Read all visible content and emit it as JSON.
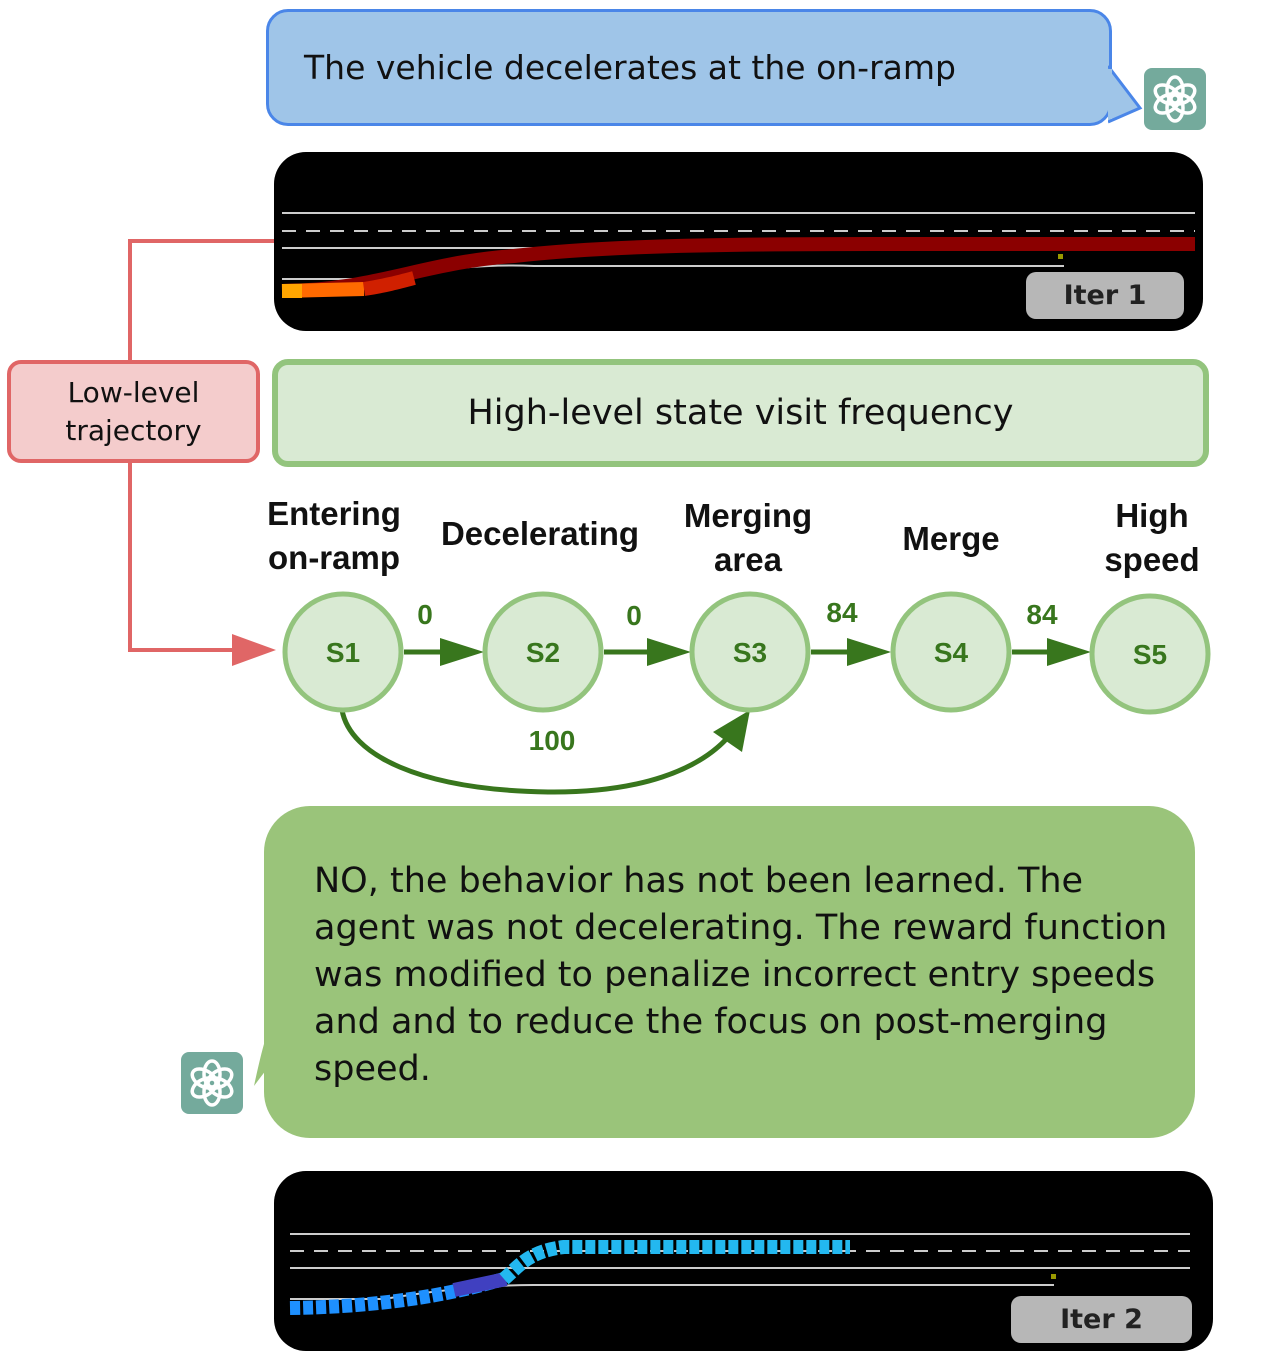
{
  "top_bubble": {
    "text": "The vehicle decelerates at the on-ramp"
  },
  "iter1": {
    "label": "Iter 1"
  },
  "iter2": {
    "label": "Iter 2"
  },
  "low_level_box": {
    "line1": "Low-level",
    "line2": "trajectory"
  },
  "high_level_box": {
    "title": "High-level state visit frequency"
  },
  "states": [
    {
      "id": "S1",
      "label_line1": "Entering",
      "label_line2": "on-ramp"
    },
    {
      "id": "S2",
      "label_line1": "Decelerating",
      "label_line2": ""
    },
    {
      "id": "S3",
      "label_line1": "Merging",
      "label_line2": "area"
    },
    {
      "id": "S4",
      "label_line1": "Merge",
      "label_line2": ""
    },
    {
      "id": "S5",
      "label_line1": "High",
      "label_line2": "speed"
    }
  ],
  "edges": [
    {
      "from": "S1",
      "to": "S2",
      "value": "0"
    },
    {
      "from": "S2",
      "to": "S3",
      "value": "0"
    },
    {
      "from": "S3",
      "to": "S4",
      "value": "84"
    },
    {
      "from": "S4",
      "to": "S5",
      "value": "84"
    },
    {
      "from": "S1",
      "to": "S3",
      "value": "100"
    }
  ],
  "bottom_bubble": {
    "text": "NO, the behavior has not been learned. The agent was not decelerating. The reward function was modified to penalize incorrect entry speeds and and to reduce the focus on post-merging speed."
  },
  "colors": {
    "state_fill": "#d9ead3",
    "state_stroke": "#93c47d",
    "edge": "#38761d",
    "edge_label": "#38761d",
    "pointer": "#e06666",
    "gpt_icon": "#74aa9c"
  },
  "icons": [
    "openai-icon",
    "openai-icon"
  ]
}
